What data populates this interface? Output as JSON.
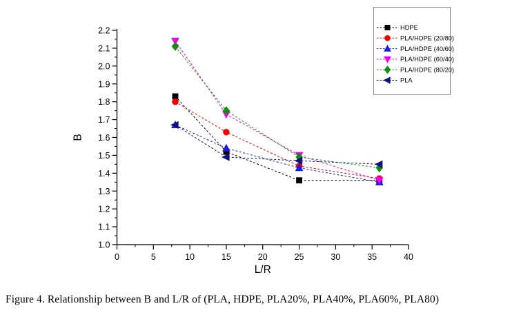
{
  "caption": "Figure 4. Relationship between B and L/R of (PLA, HDPE, PLA20%, PLA40%, PLA60%, PLA80)",
  "chart_data": {
    "type": "line",
    "subtype": "scatter-line-dashed",
    "x": [
      8,
      15,
      25,
      36
    ],
    "series": [
      {
        "name": "HDPE",
        "color": "#000000",
        "marker": "square",
        "values": [
          1.83,
          1.52,
          1.36,
          1.36
        ]
      },
      {
        "name": "PLA/HDPE (20/80)",
        "color": "#ee0000",
        "marker": "circle",
        "values": [
          1.8,
          1.63,
          1.44,
          1.37
        ]
      },
      {
        "name": "PLA/HDPE (40/60)",
        "color": "#1a1ae0",
        "marker": "triangle-up",
        "values": [
          1.67,
          1.54,
          1.43,
          1.35
        ]
      },
      {
        "name": "PLA/HDPE (60/40)",
        "color": "#f000f0",
        "marker": "triangle-down",
        "values": [
          2.14,
          1.73,
          1.5,
          1.36
        ]
      },
      {
        "name": "PLA/HDPE (80/20)",
        "color": "#0d8f0d",
        "marker": "diamond",
        "values": [
          2.11,
          1.75,
          1.49,
          1.43
        ]
      },
      {
        "name": "PLA",
        "color": "#10107a",
        "marker": "triangle-left",
        "values": [
          1.67,
          1.49,
          1.47,
          1.45
        ]
      }
    ],
    "title": "",
    "xlabel": "L/R",
    "ylabel": "B",
    "xlim": [
      0,
      40
    ],
    "ylim": [
      1.0,
      2.2
    ],
    "x_ticks": [
      0,
      5,
      10,
      15,
      20,
      25,
      30,
      35,
      40
    ],
    "y_ticks": [
      1.0,
      1.1,
      1.2,
      1.3,
      1.4,
      1.5,
      1.6,
      1.7,
      1.8,
      1.9,
      2.0,
      2.1,
      2.2
    ],
    "x_minor_step": 2.5,
    "y_minor_step": 0.05,
    "grid": false,
    "line_style": "dashed",
    "legend_position": "top-right",
    "legend_border_color": "#8a8a8a"
  }
}
